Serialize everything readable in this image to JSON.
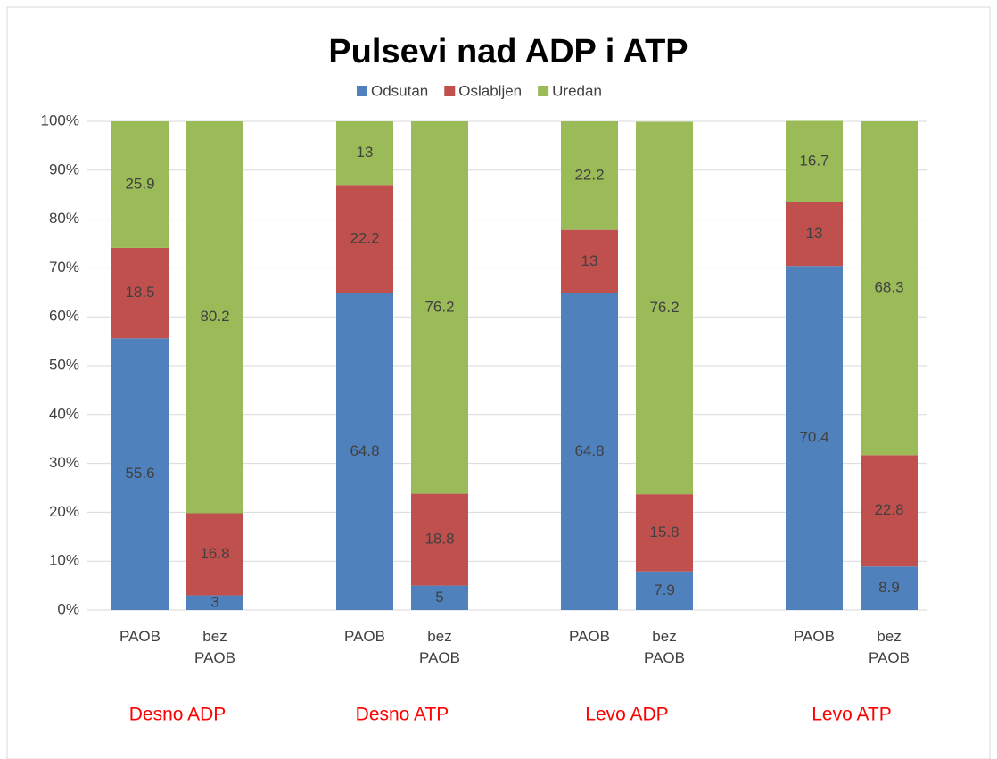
{
  "chart_data": {
    "type": "bar",
    "stacked": true,
    "title": "Pulsevi nad ADP i ATP",
    "categories": [
      "PAOB",
      "bez PAOB",
      "PAOB",
      "bez PAOB",
      "PAOB",
      "bez PAOB",
      "PAOB",
      "bez PAOB"
    ],
    "groups": [
      "Desno ADP",
      "Desno ATP",
      "Levo ADP",
      "Levo ATP"
    ],
    "group_color": "#ff0000",
    "series": [
      {
        "name": "Odsutan",
        "color": "#4f81bd",
        "values": [
          55.6,
          3,
          64.8,
          5,
          64.8,
          7.9,
          70.4,
          8.9
        ]
      },
      {
        "name": "Oslabljen",
        "color": "#c0504d",
        "values": [
          18.5,
          16.8,
          22.2,
          18.8,
          13,
          15.8,
          13,
          22.8
        ]
      },
      {
        "name": "Uredan",
        "color": "#9bbb59",
        "values": [
          25.9,
          80.2,
          13,
          76.2,
          22.2,
          76.2,
          16.7,
          68.3
        ]
      }
    ],
    "ylim": [
      0,
      100
    ],
    "yticks": [
      {
        "value": 0,
        "label": "0%"
      },
      {
        "value": 10,
        "label": "10%"
      },
      {
        "value": 20,
        "label": "20%"
      },
      {
        "value": 30,
        "label": "30%"
      },
      {
        "value": 40,
        "label": "40%"
      },
      {
        "value": 50,
        "label": "50%"
      },
      {
        "value": 60,
        "label": "60%"
      },
      {
        "value": 70,
        "label": "70%"
      },
      {
        "value": 80,
        "label": "80%"
      },
      {
        "value": 90,
        "label": "90%"
      },
      {
        "value": 100,
        "label": "100%"
      }
    ],
    "grid": true,
    "legend": "top"
  }
}
